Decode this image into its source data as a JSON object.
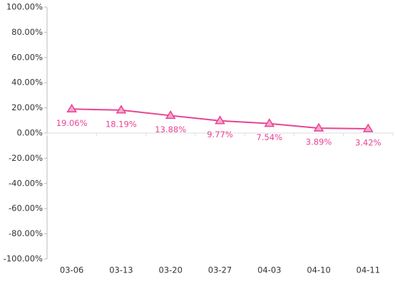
{
  "chart_data": {
    "type": "line",
    "categories": [
      "03-06",
      "03-13",
      "03-20",
      "03-27",
      "04-03",
      "04-10",
      "04-11"
    ],
    "values": [
      19.06,
      18.19,
      13.88,
      9.77,
      7.54,
      3.89,
      3.42
    ],
    "value_labels": [
      "19.06%",
      "18.19%",
      "13.88%",
      "9.77%",
      "7.54%",
      "3.89%",
      "3.42%"
    ],
    "color": "#e84393",
    "ylim": [
      -100,
      100
    ],
    "yticks": [
      {
        "value": -100,
        "label": "-100.00%"
      },
      {
        "value": -80,
        "label": "-80.00%"
      },
      {
        "value": -60,
        "label": "-60.00%"
      },
      {
        "value": -40,
        "label": "-40.00%"
      },
      {
        "value": -20,
        "label": "-20.00%"
      },
      {
        "value": 0,
        "label": "0.00%"
      },
      {
        "value": 20,
        "label": "20.00%"
      },
      {
        "value": 40,
        "label": "40.00%"
      },
      {
        "value": 60,
        "label": "60.00%"
      },
      {
        "value": 80,
        "label": "80.00%"
      },
      {
        "value": 100,
        "label": "100.00%"
      }
    ]
  }
}
